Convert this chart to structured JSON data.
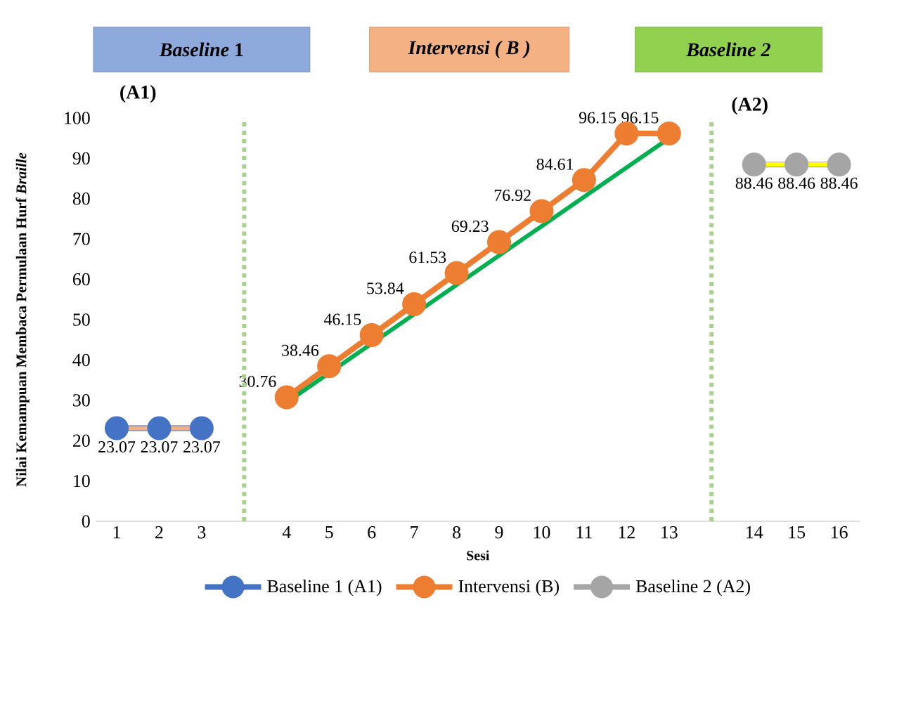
{
  "chart_data": {
    "type": "line",
    "xlabel": "Sesi",
    "ylabel": "Nilai Kemampuan Membaca Permulaan Hurf *Braille*",
    "categories": [
      "1",
      "2",
      "3",
      null,
      "4",
      "5",
      "6",
      "7",
      "8",
      "9",
      "10",
      "11",
      "12",
      "13",
      null,
      "14",
      "15",
      "16"
    ],
    "ylim": [
      0,
      100
    ],
    "yticks": [
      0,
      10,
      20,
      30,
      40,
      50,
      60,
      70,
      80,
      90,
      100
    ],
    "legend": "bottom",
    "marker": "circle",
    "series": [
      {
        "name": "Baseline 1 (A1)",
        "color": "#4472c4",
        "values": [
          23.07,
          23.07,
          23.07,
          null,
          null,
          null,
          null,
          null,
          null,
          null,
          null,
          null,
          null,
          null,
          null,
          null,
          null,
          null
        ],
        "value_labels": [
          "23.07",
          "23.07",
          "23.07",
          null,
          null,
          null,
          null,
          null,
          null,
          null,
          null,
          null,
          null,
          null,
          null,
          null,
          null,
          null
        ]
      },
      {
        "name": "Intervensi (B)",
        "color": "#ed7d31",
        "values": [
          null,
          null,
          null,
          null,
          30.76,
          38.46,
          46.15,
          53.84,
          61.53,
          69.23,
          76.92,
          84.61,
          96.15,
          96.15,
          null,
          null,
          null,
          null
        ],
        "value_labels": [
          null,
          null,
          null,
          null,
          "30.76",
          "38.46",
          "46.15",
          "53.84",
          "61.53",
          "69.23",
          "76.92",
          "84.61",
          "96.15",
          "96.15",
          null,
          null,
          null,
          null
        ]
      },
      {
        "name": "Baseline 2 (A2)",
        "color": "#a5a5a5",
        "values": [
          null,
          null,
          null,
          null,
          null,
          null,
          null,
          null,
          null,
          null,
          null,
          null,
          null,
          null,
          null,
          88.46,
          88.46,
          88.46
        ],
        "value_labels": [
          null,
          null,
          null,
          null,
          null,
          null,
          null,
          null,
          null,
          null,
          null,
          null,
          null,
          null,
          null,
          "88.46",
          "88.46",
          "88.46"
        ]
      },
      {
        "type": "line",
        "marker": "none",
        "color": "#f4b183",
        "values": [
          23.1,
          null,
          23.1,
          null,
          null,
          null,
          null,
          null,
          null,
          null,
          null,
          null,
          null,
          null,
          null,
          null,
          null,
          null
        ]
      },
      {
        "type": "line",
        "marker": "none",
        "color": "#00b050",
        "values": [
          null,
          null,
          null,
          null,
          29.5,
          null,
          null,
          null,
          null,
          null,
          null,
          null,
          null,
          95,
          null,
          null,
          null,
          null
        ]
      },
      {
        "type": "line",
        "marker": "none",
        "color": "#ffff00",
        "values": [
          null,
          null,
          null,
          null,
          null,
          null,
          null,
          null,
          null,
          null,
          null,
          null,
          null,
          null,
          null,
          88.5,
          null,
          88.5
        ]
      }
    ],
    "annotations": [
      "*Baseline* 1",
      "(A1)",
      "*Intervensi ( B )*",
      "*Baseline 2*",
      "(A2)"
    ]
  }
}
